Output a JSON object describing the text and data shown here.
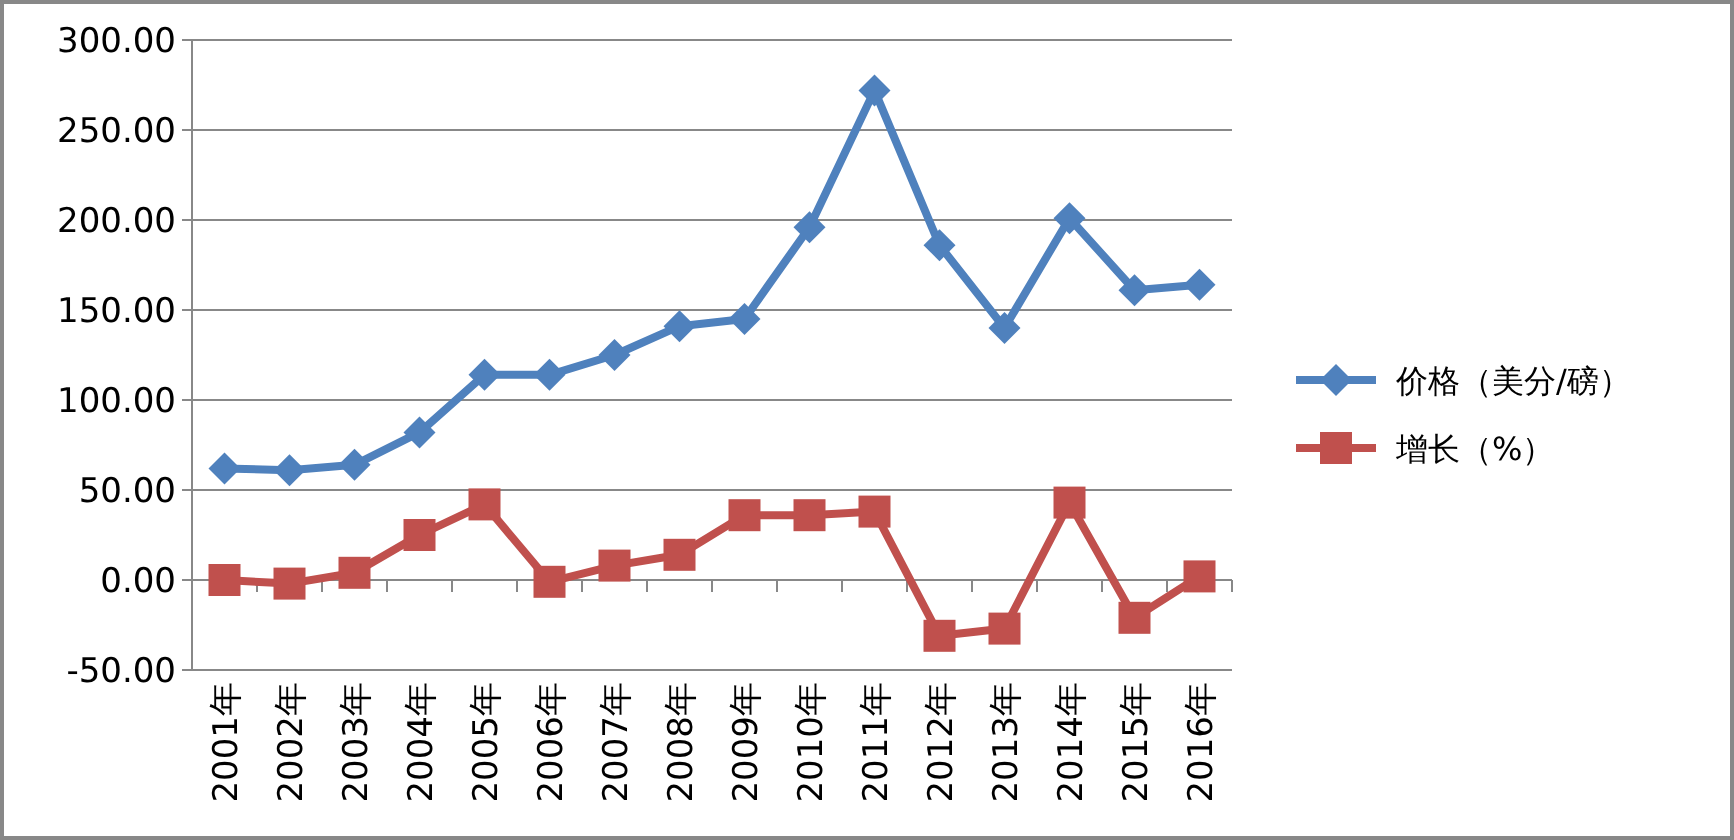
{
  "chart_data": {
    "type": "line",
    "categories": [
      "2001年",
      "2002年",
      "2003年",
      "2004年",
      "2005年",
      "2006年",
      "2007年",
      "2008年",
      "2009年",
      "2010年",
      "2011年",
      "2012年",
      "2013年",
      "2014年",
      "2015年",
      "2016年"
    ],
    "series": [
      {
        "name": "价格（美分/磅）",
        "color": "#4f81bd",
        "marker": "diamond",
        "values": [
          62,
          61,
          64,
          82,
          114,
          114,
          125,
          141,
          145,
          196,
          272,
          186,
          140,
          201,
          161,
          164
        ]
      },
      {
        "name": "增长（%）",
        "color": "#c0504d",
        "marker": "square",
        "values": [
          0,
          -2,
          4,
          25,
          42,
          -1,
          8,
          14,
          36,
          36,
          38,
          -31,
          -27,
          43,
          -21,
          2
        ]
      }
    ],
    "ylim": [
      -50,
      300
    ],
    "yticks": [
      {
        "value": -50,
        "label": "-50.00"
      },
      {
        "value": 0,
        "label": "0.00"
      },
      {
        "value": 50,
        "label": "50.00"
      },
      {
        "value": 100,
        "label": "100.00"
      },
      {
        "value": 150,
        "label": "150.00"
      },
      {
        "value": 200,
        "label": "200.00"
      },
      {
        "value": 250,
        "label": "250.00"
      },
      {
        "value": 300,
        "label": "300.00"
      }
    ],
    "grid": "y",
    "legend": "right",
    "line_style": "solid"
  }
}
